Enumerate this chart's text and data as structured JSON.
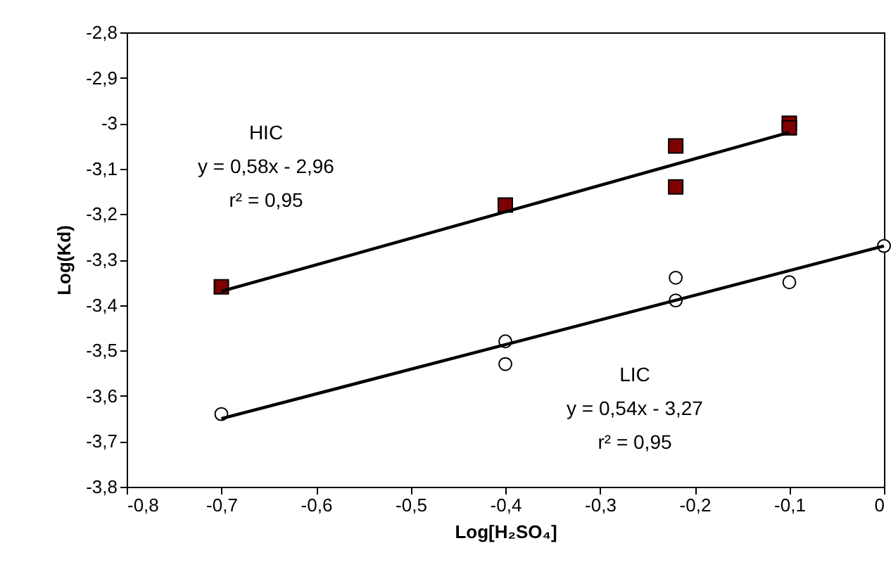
{
  "chart_data": {
    "type": "scatter",
    "xlabel": "Log[H₂SO₄]",
    "ylabel": "Log(Kd)",
    "xlim": [
      -0.8,
      0
    ],
    "ylim": [
      -3.8,
      -2.8
    ],
    "xticks": [
      {
        "value": -0.8,
        "label": "-0,8"
      },
      {
        "value": -0.7,
        "label": "-0,7"
      },
      {
        "value": -0.6,
        "label": "-0,6"
      },
      {
        "value": -0.5,
        "label": "-0,5"
      },
      {
        "value": -0.4,
        "label": "-0,4"
      },
      {
        "value": -0.3,
        "label": "-0,3"
      },
      {
        "value": -0.2,
        "label": "-0,2"
      },
      {
        "value": -0.1,
        "label": "-0,1"
      },
      0
    ],
    "yticks": [
      {
        "value": -3.8,
        "label": "-3,8"
      },
      {
        "value": -3.7,
        "label": "-3,7"
      },
      {
        "value": -3.6,
        "label": "-3,6"
      },
      {
        "value": -3.5,
        "label": "-3,5"
      },
      {
        "value": -3.4,
        "label": "-3,4"
      },
      {
        "value": -3.3,
        "label": "-3,3"
      },
      {
        "value": -3.2,
        "label": "-3,2"
      },
      {
        "value": -3.1,
        "label": "-3,1"
      },
      -3,
      {
        "value": -2.9,
        "label": "-2,9"
      },
      {
        "value": -2.8,
        "label": "-2,8"
      }
    ],
    "grid": false,
    "series": [
      {
        "marker": "square",
        "color": "#7f0000",
        "x": [
          -0.7,
          -0.4,
          -0.22,
          -0.22,
          -0.1,
          -0.1
        ],
        "values": [
          -3.36,
          -3.18,
          -3.05,
          -3.14,
          -3.0,
          -3.01
        ]
      },
      {
        "marker": "circle",
        "color": "#000000",
        "x": [
          -0.7,
          -0.4,
          -0.4,
          -0.22,
          -0.22,
          -0.1,
          0
        ],
        "values": [
          -3.64,
          -3.48,
          -3.53,
          -3.34,
          -3.39,
          -3.35,
          -3.27
        ]
      },
      {
        "type": "line",
        "color": "#000000",
        "x": [
          -0.7,
          -0.1
        ],
        "values": [
          -3.37,
          -3.02
        ]
      },
      {
        "type": "line",
        "color": "#000000",
        "x": [
          -0.7,
          0
        ],
        "values": [
          -3.65,
          -3.27
        ]
      }
    ],
    "annotations": [
      "HIC",
      "y = 0,58x - 2,96",
      "r² = 0,95",
      "LIC",
      "y = 0,54x - 3,27",
      "r² = 0,95"
    ]
  }
}
